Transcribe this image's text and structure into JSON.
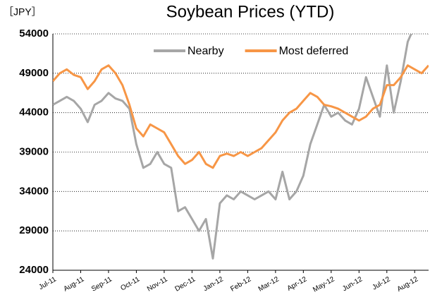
{
  "chart_data": {
    "type": "line",
    "title": "Soybean Prices (YTD)",
    "y_unit": "［JPY］",
    "categories": [
      "Jul-11",
      null,
      null,
      null,
      "Aug-11",
      null,
      null,
      null,
      "Sep-11",
      null,
      null,
      null,
      "Oct-11",
      null,
      null,
      null,
      "Nov-11",
      null,
      null,
      null,
      "Dec-11",
      null,
      null,
      null,
      "Jan-12",
      null,
      null,
      null,
      "Feb-12",
      null,
      null,
      null,
      "Mar-12",
      null,
      null,
      null,
      "Apr-12",
      null,
      null,
      null,
      "May-12",
      null,
      null,
      null,
      "Jun-12",
      null,
      null,
      null,
      "Jul-12",
      null,
      null,
      null,
      "Aug-12",
      null,
      null
    ],
    "series": [
      {
        "name": "Nearby",
        "color": "#a6a6a6",
        "values": [
          45000,
          45500,
          46000,
          45500,
          44500,
          42800,
          45000,
          45500,
          46500,
          45800,
          45500,
          44500,
          40000,
          37000,
          37500,
          39000,
          37500,
          37000,
          31500,
          32000,
          30500,
          29000,
          30500,
          25500,
          32500,
          33500,
          33000,
          34000,
          33500,
          33000,
          33500,
          34000,
          33000,
          36500,
          33000,
          34000,
          36000,
          40000,
          42500,
          45000,
          43500,
          44000,
          43000,
          42500,
          44500,
          48500,
          46000,
          43500,
          50000,
          44000,
          48000,
          53000,
          55000,
          54500,
          54000
        ]
      },
      {
        "name": "Most deferred",
        "color": "#f79646",
        "values": [
          48000,
          49000,
          49500,
          48800,
          48500,
          47000,
          48000,
          49500,
          50000,
          49000,
          47500,
          45000,
          42000,
          41000,
          42500,
          42000,
          41500,
          40000,
          38500,
          37500,
          38000,
          39000,
          37500,
          37000,
          38500,
          38800,
          38500,
          39000,
          38500,
          39000,
          39500,
          40500,
          41500,
          43000,
          44000,
          44500,
          45500,
          46500,
          46000,
          45000,
          44800,
          44500,
          44000,
          43500,
          43000,
          43500,
          44500,
          45000,
          47500,
          47500,
          48500,
          50000,
          49500,
          49000,
          50000
        ]
      }
    ],
    "ylim": [
      24000,
      54000
    ],
    "yticks": [
      24000,
      29000,
      34000,
      39000,
      44000,
      49000,
      54000
    ],
    "grid": true,
    "legend": "top"
  }
}
